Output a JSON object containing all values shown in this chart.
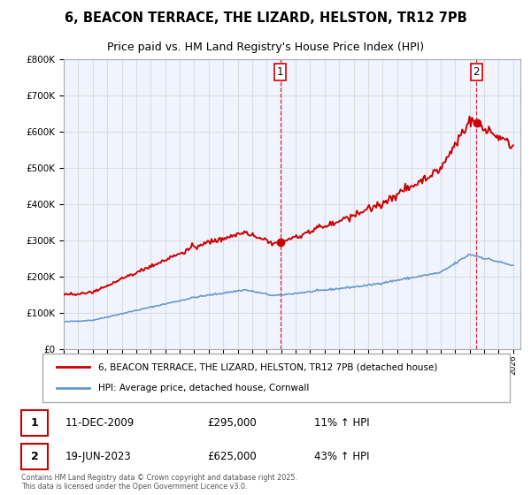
{
  "title": "6, BEACON TERRACE, THE LIZARD, HELSTON, TR12 7PB",
  "subtitle": "Price paid vs. HM Land Registry's House Price Index (HPI)",
  "legend_label_red": "6, BEACON TERRACE, THE LIZARD, HELSTON, TR12 7PB (detached house)",
  "legend_label_blue": "HPI: Average price, detached house, Cornwall",
  "footnote": "Contains HM Land Registry data © Crown copyright and database right 2025.\nThis data is licensed under the Open Government Licence v3.0.",
  "point1_label": "11-DEC-2009",
  "point1_price": "£295,000",
  "point1_hpi": "11% ↑ HPI",
  "point1_year": 2009.94,
  "point1_value": 295000,
  "point2_label": "19-JUN-2023",
  "point2_price": "£625,000",
  "point2_hpi": "43% ↑ HPI",
  "point2_year": 2023.46,
  "point2_value": 625000,
  "ylim_min": 0,
  "ylim_max": 800000,
  "xlim_min": 1995,
  "xlim_max": 2026.5,
  "red_color": "#cc0000",
  "blue_color": "#6699cc",
  "bg_color": "#ffffff",
  "grid_color": "#dddddd",
  "plot_bg": "#f0f4ff"
}
